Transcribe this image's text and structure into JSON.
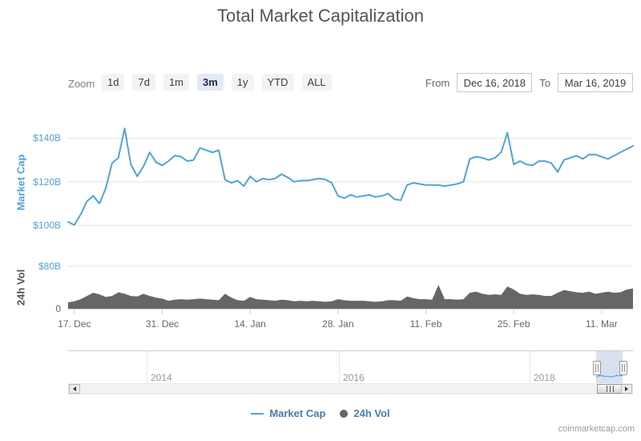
{
  "title": "Total Market Capitalization",
  "toolbar": {
    "zoom_label": "Zoom",
    "zoom_options": [
      "1d",
      "7d",
      "1m",
      "3m",
      "1y",
      "YTD",
      "ALL"
    ],
    "zoom_selected": "3m",
    "from_label": "From",
    "from_value": "Dec 16, 2018",
    "to_label": "To",
    "to_value": "Mar 16, 2019"
  },
  "legend": {
    "items": [
      {
        "label": "Market Cap",
        "marker": "line",
        "color": "#52a3d6"
      },
      {
        "label": "24h Vol",
        "marker": "circle",
        "color": "#666666"
      }
    ]
  },
  "navigator": {
    "year_labels": [
      "2014",
      "2016",
      "2018"
    ]
  },
  "attribution": "coinmarketcap.com",
  "colors": {
    "market_cap_blue": "#52a3d6",
    "volume_gray": "#666666",
    "gridline": "#e6e6e6",
    "axis_line": "#cccccc",
    "selected_button_bg": "#e4e9f6"
  },
  "chart_data": [
    {
      "type": "line",
      "name": "Market Cap",
      "color": "#52a3d6",
      "ylabel": "Market Cap",
      "unit": "USD billions",
      "ylim": [
        96,
        148
      ],
      "yticks": [
        {
          "label": "$100B",
          "value": 100,
          "color": "#52a3d6"
        },
        {
          "label": "$120B",
          "value": 120,
          "color": "#52a3d6"
        },
        {
          "label": "$140B",
          "value": 140,
          "color": "#52a3d6"
        }
      ],
      "xticks": [
        {
          "label": "17. Dec",
          "index": 1
        },
        {
          "label": "31. Dec",
          "index": 15
        },
        {
          "label": "14. Jan",
          "index": 29
        },
        {
          "label": "28. Jan",
          "index": 43
        },
        {
          "label": "11. Feb",
          "index": 57
        },
        {
          "label": "25. Feb",
          "index": 71
        },
        {
          "label": "11. Mar",
          "index": 85
        }
      ],
      "dates": [
        "2018-12-16",
        "2018-12-17",
        "2018-12-18",
        "2018-12-19",
        "2018-12-20",
        "2018-12-21",
        "2018-12-22",
        "2018-12-23",
        "2018-12-24",
        "2018-12-25",
        "2018-12-26",
        "2018-12-27",
        "2018-12-28",
        "2018-12-29",
        "2018-12-30",
        "2018-12-31",
        "2019-01-01",
        "2019-01-02",
        "2019-01-03",
        "2019-01-04",
        "2019-01-05",
        "2019-01-06",
        "2019-01-07",
        "2019-01-08",
        "2019-01-09",
        "2019-01-10",
        "2019-01-11",
        "2019-01-12",
        "2019-01-13",
        "2019-01-14",
        "2019-01-15",
        "2019-01-16",
        "2019-01-17",
        "2019-01-18",
        "2019-01-19",
        "2019-01-20",
        "2019-01-21",
        "2019-01-22",
        "2019-01-23",
        "2019-01-24",
        "2019-01-25",
        "2019-01-26",
        "2019-01-27",
        "2019-01-28",
        "2019-01-29",
        "2019-01-30",
        "2019-01-31",
        "2019-02-01",
        "2019-02-02",
        "2019-02-03",
        "2019-02-04",
        "2019-02-05",
        "2019-02-06",
        "2019-02-07",
        "2019-02-08",
        "2019-02-09",
        "2019-02-10",
        "2019-02-11",
        "2019-02-12",
        "2019-02-13",
        "2019-02-14",
        "2019-02-15",
        "2019-02-16",
        "2019-02-17",
        "2019-02-18",
        "2019-02-19",
        "2019-02-20",
        "2019-02-21",
        "2019-02-22",
        "2019-02-23",
        "2019-02-24",
        "2019-02-25",
        "2019-02-26",
        "2019-02-27",
        "2019-02-28",
        "2019-03-01",
        "2019-03-02",
        "2019-03-03",
        "2019-03-04",
        "2019-03-05",
        "2019-03-06",
        "2019-03-07",
        "2019-03-08",
        "2019-03-09",
        "2019-03-10",
        "2019-03-11",
        "2019-03-12",
        "2019-03-13",
        "2019-03-14",
        "2019-03-15",
        "2019-03-16"
      ],
      "values": [
        101.5,
        100.2,
        105.0,
        111.0,
        113.5,
        110.0,
        117.0,
        128.5,
        131.0,
        144.5,
        128.0,
        122.5,
        127.0,
        133.5,
        129.0,
        127.5,
        129.5,
        132.0,
        131.5,
        129.5,
        130.0,
        135.5,
        134.5,
        133.5,
        134.5,
        121.0,
        119.5,
        120.5,
        118.0,
        122.5,
        120.0,
        121.5,
        121.0,
        121.5,
        123.5,
        122.0,
        120.0,
        120.5,
        120.5,
        121.0,
        121.5,
        121.0,
        119.5,
        113.5,
        112.5,
        114.0,
        113.0,
        113.5,
        114.0,
        113.0,
        113.5,
        114.5,
        112.0,
        111.5,
        118.5,
        119.5,
        119.0,
        118.5,
        118.5,
        118.5,
        118.0,
        118.5,
        119.0,
        120.0,
        130.5,
        131.5,
        131.0,
        130.0,
        131.0,
        133.5,
        142.5,
        128.0,
        129.5,
        128.0,
        127.5,
        129.5,
        129.5,
        128.5,
        124.5,
        130.0,
        131.0,
        132.0,
        130.5,
        132.5,
        132.5,
        131.5,
        130.5,
        132.0,
        133.5,
        135.0,
        136.5
      ]
    },
    {
      "type": "area",
      "name": "24h Vol",
      "color": "#666666",
      "ylabel": "24h Vol",
      "unit": "USD billions",
      "ylim": [
        0,
        96
      ],
      "yticks": [
        {
          "label": "0",
          "value": 0,
          "color": "#666666"
        },
        {
          "label": "$80B",
          "value": 80,
          "color": "#52a3d6"
        }
      ],
      "values": [
        12,
        14,
        18,
        24,
        30,
        27,
        22,
        24,
        31,
        28,
        24,
        23,
        28,
        24,
        21,
        19,
        15,
        17,
        18,
        17,
        18,
        19,
        18,
        17,
        16,
        28,
        21,
        16,
        15,
        22,
        18,
        17,
        16,
        15,
        17,
        16,
        14,
        15,
        14,
        15,
        14,
        13,
        14,
        18,
        16,
        15,
        15,
        15,
        14,
        13,
        14,
        16,
        16,
        15,
        23,
        20,
        18,
        18,
        17,
        45,
        18,
        18,
        17,
        18,
        30,
        32,
        28,
        26,
        27,
        26,
        42,
        36,
        28,
        26,
        27,
        26,
        24,
        24,
        30,
        35,
        33,
        31,
        30,
        32,
        28,
        30,
        32,
        30,
        31,
        36,
        38
      ]
    }
  ]
}
